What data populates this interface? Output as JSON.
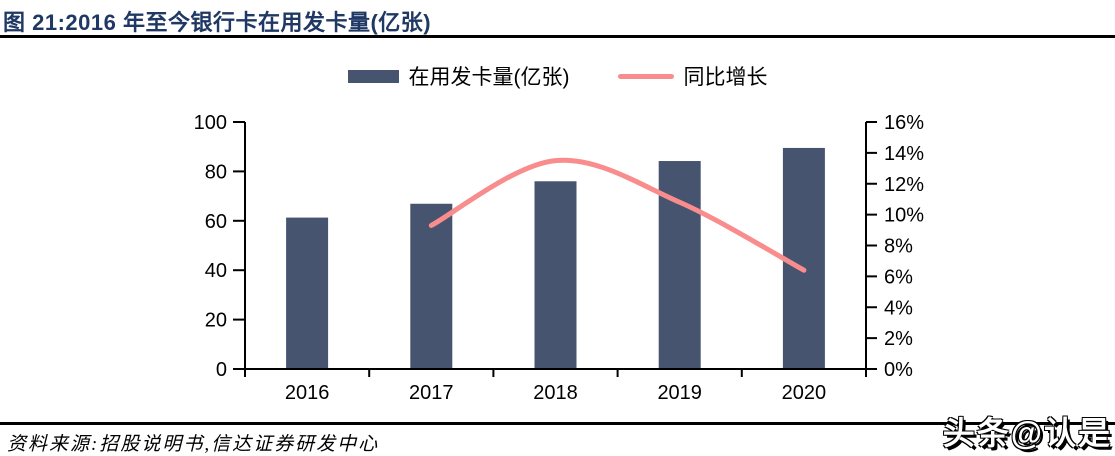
{
  "figure": {
    "title": "图 21:2016 年至今银行卡在用发卡量(亿张)",
    "source": "资料来源:招股说明书,信达证券研发中心",
    "watermark": "头条@认是"
  },
  "legend": {
    "items": [
      {
        "label": "在用发卡量(亿张)",
        "marker": "bar-swatch"
      },
      {
        "label": "同比增长",
        "marker": "line-swatch"
      }
    ]
  },
  "colors": {
    "bar": "#475470",
    "line": "#F98C8C",
    "title_text": "#1F3864",
    "axis": "#000000",
    "divider": "#000000"
  },
  "chart_data": {
    "type": "bar+line",
    "title": "2016 年至今银行卡在用发卡量(亿张)",
    "categories": [
      "2016",
      "2017",
      "2018",
      "2019",
      "2020"
    ],
    "series": [
      {
        "name": "在用发卡量(亿张)",
        "type": "bar",
        "y_axis": "left",
        "values": [
          61.3,
          66.9,
          76.0,
          84.2,
          89.5
        ]
      },
      {
        "name": "同比增长",
        "type": "line",
        "y_axis": "right",
        "unit": "%",
        "values": [
          null,
          9.3,
          13.5,
          10.8,
          6.4
        ]
      }
    ],
    "left_axis": {
      "min": 0,
      "max": 100,
      "tick_values": [
        0,
        20,
        40,
        60,
        80,
        100
      ],
      "tick_labels": [
        "0",
        "20",
        "40",
        "60",
        "80",
        "100"
      ]
    },
    "right_axis": {
      "min": 0,
      "max": 16,
      "tick_values": [
        0,
        2,
        4,
        6,
        8,
        10,
        12,
        14,
        16
      ],
      "tick_labels": [
        "0%",
        "2%",
        "4%",
        "6%",
        "8%",
        "10%",
        "12%",
        "14%",
        "16%"
      ]
    },
    "grid": false,
    "legend_position": "top"
  }
}
